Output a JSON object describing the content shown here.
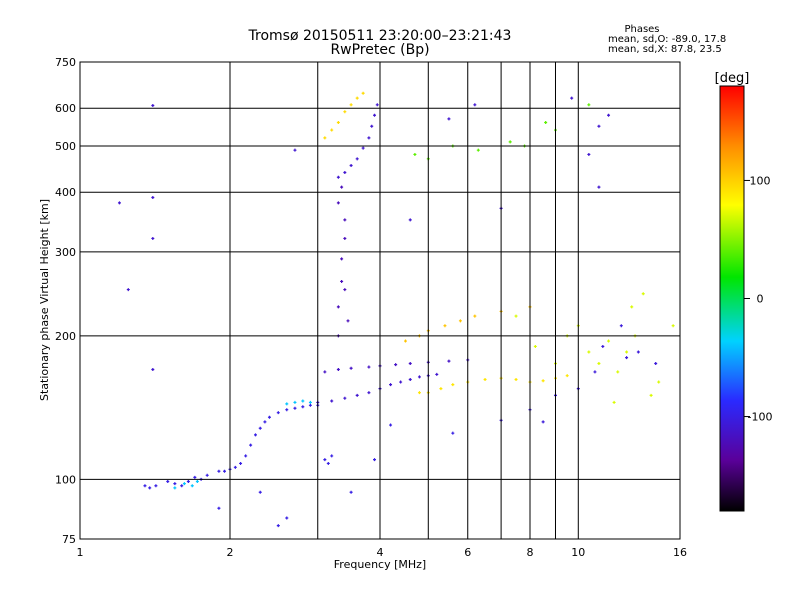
{
  "chart_data": {
    "type": "scatter",
    "title": "Tromsø 20150511 23:20:00–23:21:43",
    "subtitle": "RwPretec (Bp)",
    "xlabel": "Frequency [MHz]",
    "ylabel": "Stationary phase Virtual Height [km]",
    "x_scale": "log",
    "y_scale": "log",
    "xlim": [
      1,
      16
    ],
    "ylim": [
      75,
      750
    ],
    "x_ticks": [
      1,
      2,
      4,
      6,
      8,
      10,
      16
    ],
    "x_ticks_minor": [
      3,
      5,
      7,
      9
    ],
    "y_ticks": [
      75,
      100,
      200,
      300,
      400,
      500,
      600,
      750
    ],
    "grid": true,
    "legend": {
      "title": "Phases",
      "line1": "mean, sd,O: -89.0, 17.8",
      "line2": "mean, sd,X:  87.8, 23.5",
      "placement": "top-right"
    },
    "colorbar": {
      "label": "[deg]",
      "range": [
        -180,
        180
      ],
      "ticks": [
        100,
        0,
        -100
      ],
      "colors": [
        "#000000",
        "#5a009a",
        "#2a2aff",
        "#00d2ff",
        "#00e600",
        "#ffff00",
        "#ff8c00",
        "#ff0000"
      ]
    },
    "clusters": [
      {
        "name": "o-low",
        "points": [
          [
            1.35,
            97
          ],
          [
            1.38,
            96
          ],
          [
            1.42,
            97
          ],
          [
            1.5,
            99
          ],
          [
            1.55,
            98
          ],
          [
            1.6,
            97
          ],
          [
            1.65,
            99
          ],
          [
            1.7,
            101
          ],
          [
            1.75,
            100
          ],
          [
            1.8,
            102
          ],
          [
            1.9,
            104
          ],
          [
            1.95,
            104
          ],
          [
            2.0,
            105
          ],
          [
            2.05,
            106
          ],
          [
            2.1,
            108
          ],
          [
            2.15,
            112
          ],
          [
            2.2,
            118
          ],
          [
            2.25,
            124
          ],
          [
            2.3,
            128
          ],
          [
            2.35,
            132
          ],
          [
            2.4,
            135
          ],
          [
            2.5,
            138
          ],
          [
            2.6,
            140
          ],
          [
            2.7,
            141
          ],
          [
            2.8,
            142
          ],
          [
            2.9,
            143
          ],
          [
            3.0,
            143
          ]
        ],
        "phase": -100
      },
      {
        "name": "x-low",
        "points": [
          [
            1.55,
            96
          ],
          [
            1.62,
            98
          ],
          [
            1.68,
            97
          ],
          [
            1.72,
            99
          ],
          [
            2.6,
            144
          ],
          [
            2.7,
            145
          ],
          [
            2.8,
            146
          ],
          [
            2.9,
            145
          ]
        ],
        "phase": -40
      },
      {
        "name": "o-mid",
        "points": [
          [
            3.0,
            145
          ],
          [
            3.2,
            146
          ],
          [
            3.4,
            148
          ],
          [
            3.6,
            150
          ],
          [
            3.8,
            152
          ],
          [
            4.0,
            155
          ],
          [
            4.2,
            158
          ],
          [
            4.4,
            160
          ],
          [
            4.6,
            162
          ],
          [
            4.8,
            164
          ],
          [
            5.0,
            165
          ],
          [
            5.2,
            166
          ]
        ],
        "phase": -110
      },
      {
        "name": "o-mid2",
        "points": [
          [
            3.1,
            168
          ],
          [
            3.3,
            170
          ],
          [
            3.5,
            171
          ],
          [
            3.8,
            172
          ],
          [
            4.0,
            173
          ],
          [
            4.3,
            174
          ],
          [
            4.6,
            175
          ],
          [
            5.0,
            176
          ],
          [
            5.5,
            177
          ],
          [
            6.0,
            178
          ]
        ],
        "phase": -115
      },
      {
        "name": "x-mid",
        "points": [
          [
            4.8,
            152
          ],
          [
            5.0,
            152
          ],
          [
            5.3,
            155
          ],
          [
            5.6,
            158
          ],
          [
            6.0,
            160
          ],
          [
            6.5,
            162
          ],
          [
            7.0,
            163
          ],
          [
            7.5,
            162
          ],
          [
            8.0,
            160
          ],
          [
            8.5,
            161
          ],
          [
            9.0,
            163
          ],
          [
            9.5,
            165
          ]
        ],
        "phase": 90
      },
      {
        "name": "x-mid2",
        "points": [
          [
            4.5,
            195
          ],
          [
            4.8,
            200
          ],
          [
            5.0,
            205
          ],
          [
            5.4,
            210
          ],
          [
            5.8,
            215
          ],
          [
            6.2,
            220
          ],
          [
            7.0,
            225
          ],
          [
            8.0,
            230
          ]
        ],
        "phase": 105
      },
      {
        "name": "F-trace",
        "points": [
          [
            3.3,
            430
          ],
          [
            3.4,
            440
          ],
          [
            3.5,
            455
          ],
          [
            3.6,
            470
          ],
          [
            3.7,
            495
          ],
          [
            3.8,
            520
          ],
          [
            3.85,
            550
          ],
          [
            3.9,
            580
          ],
          [
            3.95,
            610
          ]
        ],
        "phase": -110
      },
      {
        "name": "F-x",
        "points": [
          [
            3.1,
            520
          ],
          [
            3.2,
            540
          ],
          [
            3.3,
            560
          ],
          [
            3.4,
            590
          ],
          [
            3.5,
            610
          ],
          [
            3.6,
            630
          ],
          [
            3.7,
            645
          ]
        ],
        "phase": 95
      },
      {
        "name": "F-vertical",
        "points": [
          [
            3.3,
            200
          ],
          [
            3.3,
            230
          ],
          [
            3.35,
            260
          ],
          [
            3.35,
            290
          ],
          [
            3.4,
            320
          ],
          [
            3.4,
            350
          ],
          [
            3.3,
            380
          ],
          [
            3.35,
            410
          ],
          [
            3.4,
            250
          ],
          [
            3.45,
            215
          ]
        ],
        "phase": -120
      },
      {
        "name": "F-high",
        "points": [
          [
            4.7,
            480
          ],
          [
            5.0,
            470
          ],
          [
            5.6,
            500
          ],
          [
            6.3,
            490
          ],
          [
            7.3,
            510
          ],
          [
            7.8,
            500
          ],
          [
            8.6,
            560
          ],
          [
            9.0,
            540
          ],
          [
            10.5,
            610
          ]
        ],
        "phase": 40
      },
      {
        "name": "scatter-hi",
        "points": [
          [
            1.4,
            608
          ],
          [
            1.4,
            390
          ],
          [
            1.4,
            320
          ],
          [
            1.4,
            170
          ],
          [
            1.2,
            380
          ],
          [
            1.25,
            250
          ],
          [
            2.7,
            490
          ],
          [
            4.6,
            350
          ],
          [
            5.5,
            570
          ],
          [
            6.2,
            610
          ],
          [
            7.0,
            370
          ],
          [
            9.7,
            630
          ],
          [
            11.0,
            550
          ],
          [
            11.0,
            410
          ],
          [
            10.5,
            480
          ],
          [
            11.5,
            580
          ]
        ],
        "phase": -110
      },
      {
        "name": "scatter-mid",
        "points": [
          [
            7.5,
            220
          ],
          [
            8.2,
            190
          ],
          [
            9.0,
            175
          ],
          [
            9.5,
            200
          ],
          [
            10.0,
            210
          ],
          [
            10.5,
            185
          ],
          [
            11.0,
            175
          ],
          [
            11.5,
            195
          ],
          [
            12.0,
            168
          ],
          [
            12.5,
            185
          ],
          [
            13.0,
            200
          ],
          [
            14.0,
            150
          ],
          [
            14.5,
            160
          ],
          [
            15.5,
            210
          ],
          [
            11.8,
            145
          ],
          [
            12.8,
            230
          ],
          [
            13.5,
            245
          ]
        ],
        "phase": 70
      },
      {
        "name": "scatter-mid2",
        "points": [
          [
            8.0,
            140
          ],
          [
            8.5,
            132
          ],
          [
            7.0,
            133
          ],
          [
            9.0,
            150
          ],
          [
            10.0,
            155
          ],
          [
            12.5,
            180
          ],
          [
            10.8,
            168
          ],
          [
            11.2,
            190
          ],
          [
            12.2,
            210
          ],
          [
            13.2,
            185
          ],
          [
            14.3,
            175
          ]
        ],
        "phase": -105
      },
      {
        "name": "misc",
        "points": [
          [
            3.1,
            110
          ],
          [
            3.2,
            112
          ],
          [
            3.15,
            108
          ],
          [
            2.3,
            94
          ],
          [
            3.5,
            94
          ],
          [
            2.5,
            80
          ],
          [
            1.9,
            87
          ],
          [
            2.6,
            83
          ],
          [
            3.9,
            110
          ],
          [
            4.2,
            130
          ],
          [
            5.6,
            125
          ]
        ],
        "phase": -100
      }
    ]
  }
}
